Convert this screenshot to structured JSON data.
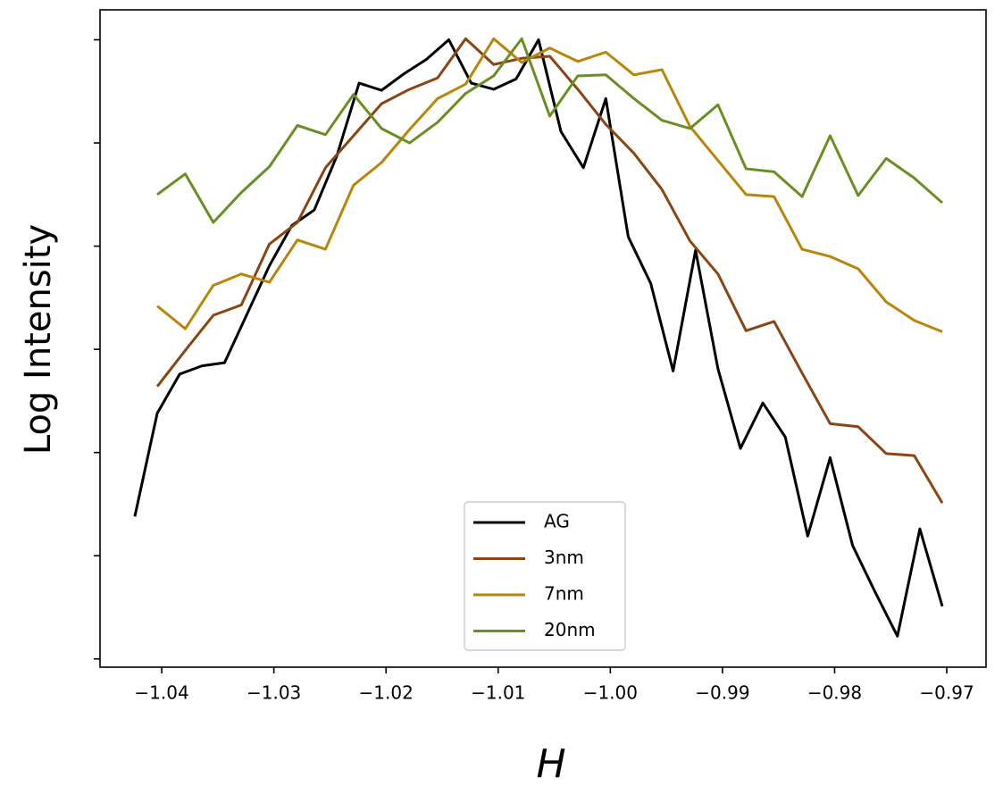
{
  "chart_data": {
    "type": "line",
    "y_label": "Log Intensity",
    "x_label": "H",
    "xlim": [
      -1.0455,
      -0.9665
    ],
    "ylim": [
      -0.08,
      6.29
    ],
    "xticks": [
      {
        "value": -1.04,
        "label": "−1.04"
      },
      {
        "value": -1.03,
        "label": "−1.03"
      },
      {
        "value": -1.02,
        "label": "−1.02"
      },
      {
        "value": -1.01,
        "label": "−1.01"
      },
      {
        "value": -1.0,
        "label": "−1.00"
      },
      {
        "value": -0.99,
        "label": "−0.99"
      },
      {
        "value": -0.98,
        "label": "−0.98"
      },
      {
        "value": -0.97,
        "label": "−0.97"
      }
    ],
    "yticks": [
      0,
      1,
      2,
      3,
      4,
      5,
      6
    ],
    "ytick_labels_shown": false,
    "legend_position": "lower center",
    "series": [
      {
        "name": "AG",
        "color": "#000000",
        "x": [
          -1.0424,
          -1.0404,
          -1.0384,
          -1.0364,
          -1.0344,
          -1.0324,
          -1.0304,
          -1.0284,
          -1.0264,
          -1.0244,
          -1.0224,
          -1.0204,
          -1.0184,
          -1.0164,
          -1.0144,
          -1.0124,
          -1.0104,
          -1.0084,
          -1.0064,
          -1.0044,
          -1.0024,
          -1.0004,
          -0.9984,
          -0.9964,
          -0.9944,
          -0.9924,
          -0.9904,
          -0.9884,
          -0.9864,
          -0.9844,
          -0.9824,
          -0.9804,
          -0.9784,
          -0.9764,
          -0.9744,
          -0.9724,
          -0.9704
        ],
        "values": [
          1.38,
          2.38,
          2.76,
          2.84,
          2.87,
          3.34,
          3.81,
          4.2,
          4.35,
          4.87,
          5.58,
          5.51,
          5.67,
          5.81,
          6.0,
          5.58,
          5.52,
          5.62,
          6.0,
          5.11,
          4.76,
          5.43,
          4.09,
          3.64,
          2.79,
          3.96,
          2.81,
          2.04,
          2.48,
          2.15,
          1.19,
          1.95,
          1.1,
          0.65,
          0.22,
          1.26,
          0.51
        ]
      },
      {
        "name": "3nm",
        "color": "#8b4513",
        "x": [
          -1.0404,
          -1.0379,
          -1.0354,
          -1.0329,
          -1.0304,
          -1.0279,
          -1.0254,
          -1.0229,
          -1.0204,
          -1.0179,
          -1.0154,
          -1.0129,
          -1.0104,
          -1.0079,
          -1.0054,
          -1.0029,
          -1.0004,
          -0.9979,
          -0.9954,
          -0.9929,
          -0.9904,
          -0.9879,
          -0.9854,
          -0.9829,
          -0.9804,
          -0.9779,
          -0.9754,
          -0.9729,
          -0.9704
        ],
        "values": [
          2.64,
          2.99,
          3.33,
          3.43,
          4.02,
          4.23,
          4.76,
          5.07,
          5.38,
          5.52,
          5.63,
          6.01,
          5.76,
          5.82,
          5.84,
          5.52,
          5.18,
          4.9,
          4.55,
          4.05,
          3.73,
          3.18,
          3.27,
          2.77,
          2.28,
          2.25,
          1.99,
          1.97,
          1.51
        ]
      },
      {
        "name": "7nm",
        "color": "#b8860b",
        "x": [
          -1.0404,
          -1.0379,
          -1.0354,
          -1.0329,
          -1.0304,
          -1.0279,
          -1.0254,
          -1.0229,
          -1.0204,
          -1.0179,
          -1.0154,
          -1.0129,
          -1.0104,
          -1.0079,
          -1.0054,
          -1.0029,
          -1.0004,
          -0.9979,
          -0.9954,
          -0.9929,
          -0.9904,
          -0.9879,
          -0.9854,
          -0.9829,
          -0.9804,
          -0.9779,
          -0.9754,
          -0.9729,
          -0.9704
        ],
        "values": [
          3.42,
          3.2,
          3.62,
          3.73,
          3.65,
          4.06,
          3.97,
          4.59,
          4.81,
          5.13,
          5.43,
          5.57,
          6.01,
          5.78,
          5.92,
          5.79,
          5.88,
          5.66,
          5.71,
          5.16,
          4.83,
          4.5,
          4.48,
          3.97,
          3.9,
          3.78,
          3.46,
          3.28,
          3.17
        ]
      },
      {
        "name": "20nm",
        "color": "#6b8e23",
        "x": [
          -1.0404,
          -1.0379,
          -1.0354,
          -1.0329,
          -1.0304,
          -1.0279,
          -1.0254,
          -1.0229,
          -1.0204,
          -1.0179,
          -1.0154,
          -1.0129,
          -1.0104,
          -1.0079,
          -1.0054,
          -1.0029,
          -1.0004,
          -0.9979,
          -0.9954,
          -0.9929,
          -0.9904,
          -0.9879,
          -0.9854,
          -0.9829,
          -0.9804,
          -0.9779,
          -0.9754,
          -0.9729,
          -0.9704
        ],
        "values": [
          4.5,
          4.7,
          4.23,
          4.52,
          4.77,
          5.17,
          5.08,
          5.47,
          5.14,
          5.0,
          5.2,
          5.48,
          5.65,
          6.01,
          5.26,
          5.65,
          5.66,
          5.43,
          5.22,
          5.14,
          5.37,
          4.75,
          4.72,
          4.48,
          5.07,
          4.49,
          4.85,
          4.66,
          4.42
        ]
      }
    ]
  }
}
